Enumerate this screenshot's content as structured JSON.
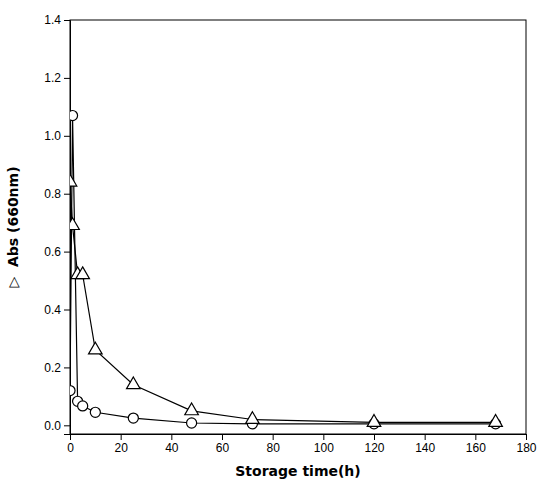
{
  "chart_data": {
    "type": "line",
    "xlabel": "Storage time(h)",
    "ylabel": "▷  Abs (660nm)",
    "x": [
      0,
      1,
      3,
      5,
      10,
      25,
      48,
      72,
      120,
      168
    ],
    "series": [
      {
        "color": "#000000",
        "marker": "circle",
        "values": [
          0.12,
          1.07,
          0.083,
          0.067,
          0.045,
          0.025,
          0.008,
          0.005,
          0.005,
          0.005
        ]
      },
      {
        "color": "#000000",
        "marker": "triangle",
        "values": [
          0.84,
          0.69,
          0.52,
          0.52,
          0.26,
          0.14,
          0.05,
          0.02,
          0.01,
          0.01
        ]
      }
    ],
    "xlim": [
      0,
      180
    ],
    "ylim": [
      -0.03,
      1.4
    ],
    "xticks": [
      0,
      20,
      40,
      60,
      80,
      100,
      120,
      140,
      160,
      180
    ],
    "yticks": [
      {
        "value": 0.0,
        "label": "0.0"
      },
      0.2,
      0.4,
      0.6,
      0.8,
      {
        "value": 1.0,
        "label": "1.0"
      },
      1.2,
      1.4
    ],
    "grid": false
  }
}
